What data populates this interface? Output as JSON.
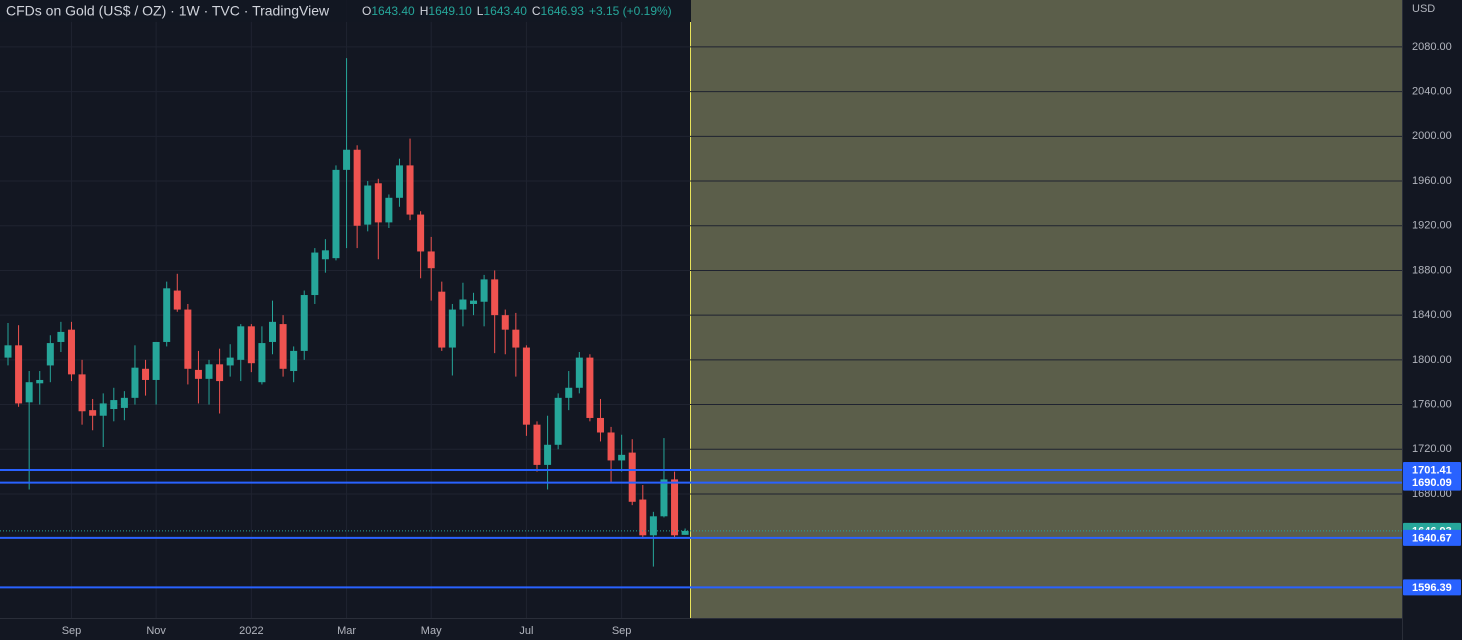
{
  "chart_data": {
    "type": "candlestick",
    "title": "CFDs on Gold (US$ / OZ) · 1W · TVC · TradingView",
    "ohlc_legend": [
      {
        "label": "O",
        "value": "1643.40"
      },
      {
        "label": "H",
        "value": "1649.10"
      },
      {
        "label": "L",
        "value": "1643.40"
      },
      {
        "label": "C",
        "value": "1646.93"
      }
    ],
    "change": "+3.15 (+0.19%)",
    "currency": "USD",
    "up_color": "#26a69a",
    "down_color": "#ef5350",
    "line_color": "#2962ff",
    "categories": [
      null,
      null,
      null,
      null,
      null,
      null,
      "Sep",
      null,
      null,
      null,
      null,
      null,
      null,
      null,
      "Nov",
      null,
      null,
      null,
      null,
      null,
      null,
      null,
      null,
      "2022",
      null,
      null,
      null,
      null,
      null,
      null,
      null,
      null,
      "Mar",
      null,
      null,
      null,
      null,
      null,
      null,
      null,
      "May",
      null,
      null,
      null,
      null,
      null,
      null,
      null,
      null,
      "Jul",
      null,
      null,
      null,
      null,
      null,
      null,
      null,
      null,
      "Sep",
      null,
      null,
      null,
      null,
      null,
      null
    ],
    "open": [
      1802,
      1813,
      1762,
      1779,
      1795,
      1816,
      1827,
      1787,
      1755,
      1750,
      1756,
      1757,
      1766,
      1792,
      1782,
      1816,
      1862,
      1845,
      1791,
      1783,
      1796,
      1795,
      1800,
      1830,
      1780,
      1816,
      1832,
      1790,
      1808,
      1858,
      1890,
      1891,
      1970,
      1988,
      1921,
      1958,
      1923,
      1945,
      1974,
      1930,
      1897,
      1861,
      1811,
      1845,
      1850,
      1852,
      1872,
      1840,
      1827,
      1811,
      1742,
      1706,
      1724,
      1766,
      1775,
      1802,
      1748,
      1735,
      1710,
      1717,
      1675,
      1643,
      1660,
      1693,
      1643.4
    ],
    "high": [
      1833,
      1831,
      1790,
      1790,
      1822,
      1834,
      1834,
      1800,
      1765,
      1770,
      1775,
      1772,
      1813,
      1800,
      1816,
      1870,
      1877,
      1850,
      1808,
      1800,
      1810,
      1814,
      1832,
      1832,
      1830,
      1853,
      1840,
      1812,
      1862,
      1900,
      1908,
      1974,
      2070,
      1992,
      1960,
      1962,
      1948,
      1980,
      1998,
      1933,
      1910,
      1870,
      1850,
      1869,
      1860,
      1876,
      1880,
      1845,
      1842,
      1813,
      1745,
      1750,
      1770,
      1790,
      1807,
      1805,
      1765,
      1740,
      1733,
      1729,
      1688,
      1664,
      1730,
      1700,
      1649.1
    ],
    "low": [
      1795,
      1758,
      1684,
      1760,
      1780,
      1807,
      1781,
      1742,
      1737,
      1722,
      1745,
      1746,
      1760,
      1768,
      1760,
      1812,
      1843,
      1778,
      1761,
      1760,
      1752,
      1785,
      1781,
      1789,
      1778,
      1805,
      1785,
      1780,
      1800,
      1850,
      1878,
      1889,
      1900,
      1900,
      1915,
      1890,
      1918,
      1937,
      1925,
      1873,
      1853,
      1808,
      1786,
      1830,
      1840,
      1830,
      1806,
      1805,
      1785,
      1732,
      1700,
      1684,
      1720,
      1755,
      1770,
      1745,
      1727,
      1690,
      1700,
      1670,
      1640,
      1615,
      1659,
      1640,
      1643.4
    ],
    "close": [
      1813,
      1761,
      1780,
      1782,
      1815,
      1825,
      1787,
      1754,
      1750,
      1761,
      1764,
      1766,
      1793,
      1782,
      1816,
      1864,
      1845,
      1792,
      1783,
      1796,
      1781,
      1802,
      1830,
      1797,
      1815,
      1834,
      1792,
      1808,
      1858,
      1896,
      1898,
      1970,
      1988,
      1920,
      1956,
      1923,
      1945,
      1974,
      1930,
      1897,
      1882,
      1811,
      1845,
      1854,
      1853,
      1872,
      1840,
      1827,
      1811,
      1742,
      1706,
      1724,
      1766,
      1775,
      1802,
      1748,
      1735,
      1710,
      1715,
      1673,
      1643,
      1660,
      1693,
      1643,
      1646.93
    ],
    "hlines": [
      1701.41,
      1690.09,
      1640.67,
      1596.39
    ],
    "last_price": 1646.93,
    "ylim": [
      1569,
      2122
    ],
    "yticks": [
      {
        "value": 1680,
        "label": "1680.00"
      },
      {
        "value": 1720,
        "label": "1720.00"
      },
      {
        "value": 1760,
        "label": "1760.00"
      },
      {
        "value": 1800,
        "label": "1800.00"
      },
      {
        "value": 1840,
        "label": "1840.00"
      },
      {
        "value": 1880,
        "label": "1880.00"
      },
      {
        "value": 1920,
        "label": "1920.00"
      },
      {
        "value": 1960,
        "label": "1960.00"
      },
      {
        "value": 2000,
        "label": "2000.00"
      },
      {
        "value": 2040,
        "label": "2040.00"
      },
      {
        "value": 2080,
        "label": "2080.00"
      }
    ],
    "grid": true
  }
}
